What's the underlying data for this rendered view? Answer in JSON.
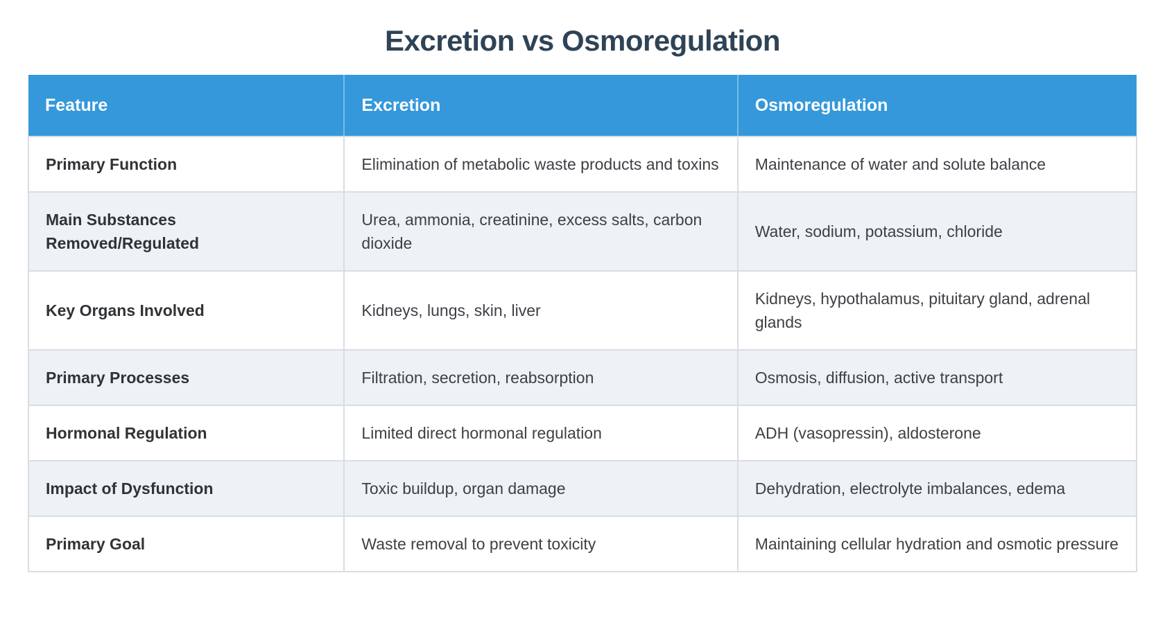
{
  "title": "Excretion vs Osmoregulation",
  "colors": {
    "header_background": "#3498db",
    "header_text": "#ffffff",
    "title_text": "#2f4356",
    "row_alternate_background": "#eef1f6",
    "cell_border": "#d9dde2",
    "body_text": "#3d4045"
  },
  "table": {
    "headers": {
      "feature": "Feature",
      "excretion": "Excretion",
      "osmoregulation": "Osmoregulation"
    },
    "rows": [
      {
        "feature": "Primary Function",
        "excretion": "Elimination of metabolic waste products and toxins",
        "osmoregulation": "Maintenance of water and solute balance"
      },
      {
        "feature": "Main Substances Removed/Regulated",
        "excretion": "Urea, ammonia, creatinine, excess salts, carbon dioxide",
        "osmoregulation": "Water, sodium, potassium, chloride"
      },
      {
        "feature": "Key Organs Involved",
        "excretion": "Kidneys, lungs, skin, liver",
        "osmoregulation": "Kidneys, hypothalamus, pituitary gland, adrenal glands"
      },
      {
        "feature": "Primary Processes",
        "excretion": "Filtration, secretion, reabsorption",
        "osmoregulation": "Osmosis, diffusion, active transport"
      },
      {
        "feature": "Hormonal Regulation",
        "excretion": "Limited direct hormonal regulation",
        "osmoregulation": "ADH (vasopressin), aldosterone"
      },
      {
        "feature": "Impact of Dysfunction",
        "excretion": "Toxic buildup, organ damage",
        "osmoregulation": "Dehydration, electrolyte imbalances, edema"
      },
      {
        "feature": "Primary Goal",
        "excretion": "Waste removal to prevent toxicity",
        "osmoregulation": "Maintaining cellular hydration and osmotic pressure"
      }
    ]
  }
}
